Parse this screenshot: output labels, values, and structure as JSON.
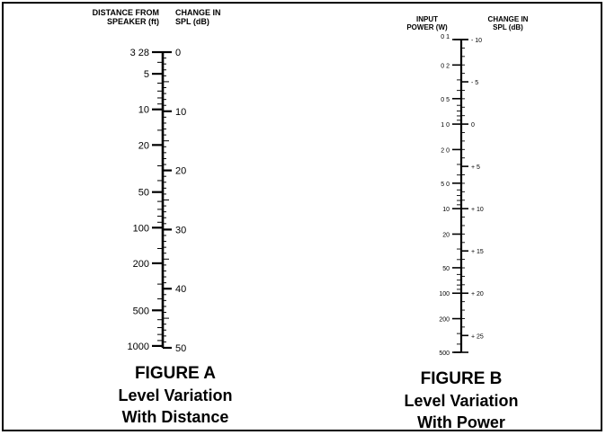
{
  "figure_a": {
    "left_header": [
      "DISTANCE FROM",
      "SPEAKER (ft)"
    ],
    "right_header": [
      "CHANGE IN",
      "SPL (dB)"
    ],
    "left_labels": [
      "3 28",
      "5",
      "10",
      "20",
      "50",
      "100",
      "200",
      "500",
      "1000"
    ],
    "right_labels": [
      "0",
      "10",
      "20",
      "30",
      "40",
      "50"
    ],
    "caption": {
      "title": "FIGURE A",
      "line1": "Level Variation",
      "line2": "With Distance"
    }
  },
  "figure_b": {
    "left_header": [
      "INPUT",
      "POWER (W)"
    ],
    "right_header": [
      "CHANGE IN",
      "SPL (dB)"
    ],
    "left_labels": [
      "0 1",
      "0 2",
      "0 5",
      "1 0",
      "2 0",
      "5 0",
      "10",
      "20",
      "50",
      "100",
      "200",
      "500"
    ],
    "right_labels": [
      "- 10",
      "- 5",
      "0",
      "+ 5",
      "+ 10",
      "+ 15",
      "+ 20",
      "+ 25"
    ],
    "caption": {
      "title": "FIGURE B",
      "line1": "Level Variation",
      "line2": "With Power"
    }
  },
  "colors": {
    "ink": "#000000",
    "background": "#ffffff"
  }
}
